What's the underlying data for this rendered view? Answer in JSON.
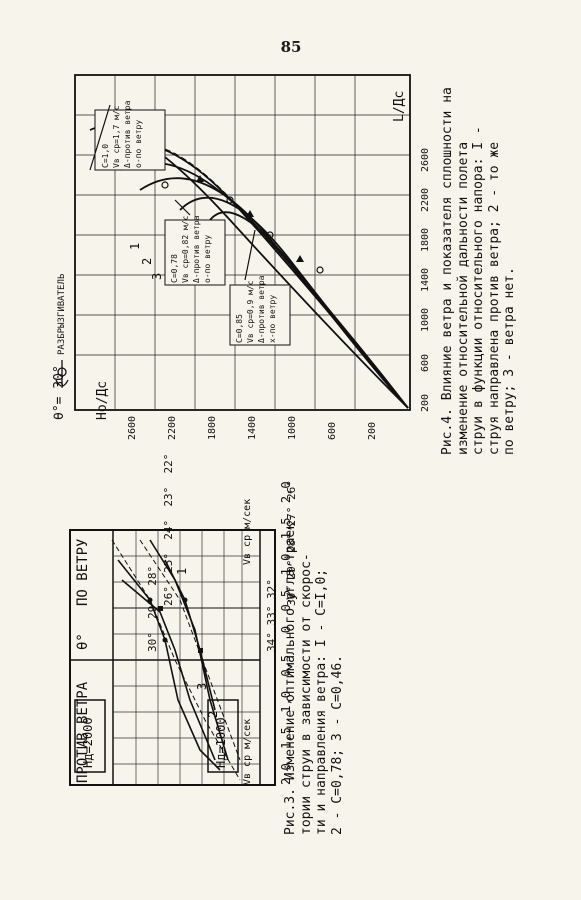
{
  "page_number": "85",
  "fig3": {
    "caption_lines": [
      "Рис.3. Изменение оптимального угла траек-",
      "тории струи в зависимости от скорос-",
      "ти и направления ветра: I - C=I,0;",
      "2 - C=0,78; 3 - C=0,46."
    ],
    "header_against": "ПРОТИВ ВЕТРА",
    "header_theta": "θ°",
    "header_with": "ПО ВЕТРУ",
    "upper_box": "Hд=2000",
    "lower_box": "Hд=1000",
    "upper_angles": [
      "30°",
      "29°",
      "28°",
      "26°",
      "25°",
      "24°",
      "23°",
      "22°"
    ],
    "lower_angles": [
      "34°",
      "33°",
      "32°",
      "30°",
      "29°",
      "28°",
      "27°",
      "26°"
    ],
    "x_ticks": [
      "2,0",
      "1,5",
      "1,0",
      "0,5",
      "0",
      "0,5",
      "1,0",
      "1,5",
      "2,0"
    ],
    "axis_label_left": "Vв ср м/сек",
    "axis_label_right": "Vв ср м/сек",
    "curve_labels": [
      "1",
      "2",
      "3"
    ]
  },
  "fig4": {
    "caption_lines": [
      "Рис.4. Влияние ветра и показателя сплошности на",
      "изменение относительной дальности полета",
      "струи в функции относительного напора: I -",
      "струя направлена против ветра; 2 - то же",
      "по ветру; 3 - ветра нет."
    ],
    "theta_label": "θ°= 30°",
    "sprinkler_label": "РАЗБРЫЗГИВАТЕЛЬ",
    "y_label": "Hо/Дс",
    "x_label": "L/Дс",
    "h_ticks": [
      "200",
      "600",
      "1000",
      "1400",
      "1800",
      "2200",
      "2600"
    ],
    "v_ticks": [
      "2600",
      "2200",
      "1800",
      "1400",
      "1000",
      "600",
      "200"
    ],
    "legend_top": [
      "C=1,0",
      "Vв ср=1,7 м/с",
      "Δ-против ветра",
      "о-по ветру"
    ],
    "legend_mid": [
      "C=0,78",
      "Vв ср=0,82 м/с",
      "Δ-против ветра",
      "о-по ветру"
    ],
    "legend_low": [
      "C=0,85",
      "Vв ср=0,9 м/с",
      "Δ-против ветра",
      "х-по ветру"
    ],
    "curve_labels": [
      "1",
      "2",
      "3"
    ]
  }
}
